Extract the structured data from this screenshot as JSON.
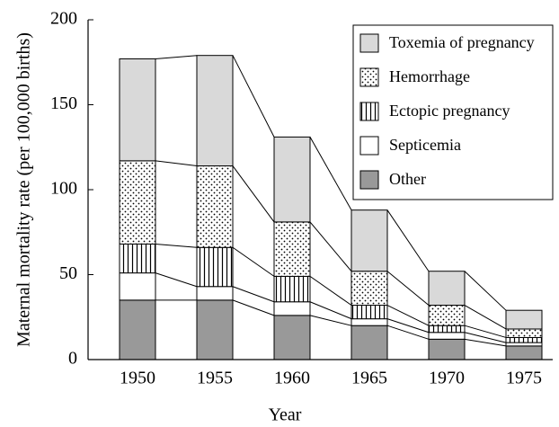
{
  "chart_data": {
    "type": "stacked_bar",
    "x_label": "Year",
    "y_label": "Maternal mortality rate (per 100,000 births)",
    "categories": [
      "1950",
      "1955",
      "1960",
      "1965",
      "1970",
      "1975"
    ],
    "series": [
      {
        "name": "Other",
        "color": "#999999",
        "pattern": "solid",
        "values": [
          35,
          35,
          26,
          20,
          12,
          8
        ]
      },
      {
        "name": "Septicemia",
        "color": "#ffffff",
        "pattern": "solid",
        "values": [
          16,
          8,
          8,
          4,
          4,
          2
        ]
      },
      {
        "name": "Ectopic pregnancy",
        "color": "#ffffff",
        "pattern": "vertical-lines",
        "values": [
          17,
          23,
          15,
          8,
          4,
          3
        ]
      },
      {
        "name": "Hemorrhage",
        "color": "#ffffff",
        "pattern": "dots",
        "values": [
          49,
          48,
          32,
          20,
          12,
          5
        ]
      },
      {
        "name": "Toxemia of pregnancy",
        "color": "#d9d9d9",
        "pattern": "solid",
        "values": [
          60,
          65,
          50,
          36,
          20,
          11
        ]
      }
    ],
    "ylim": [
      0,
      200
    ],
    "yticks": [
      0,
      50,
      100,
      150,
      200
    ],
    "legend": "top-right"
  }
}
